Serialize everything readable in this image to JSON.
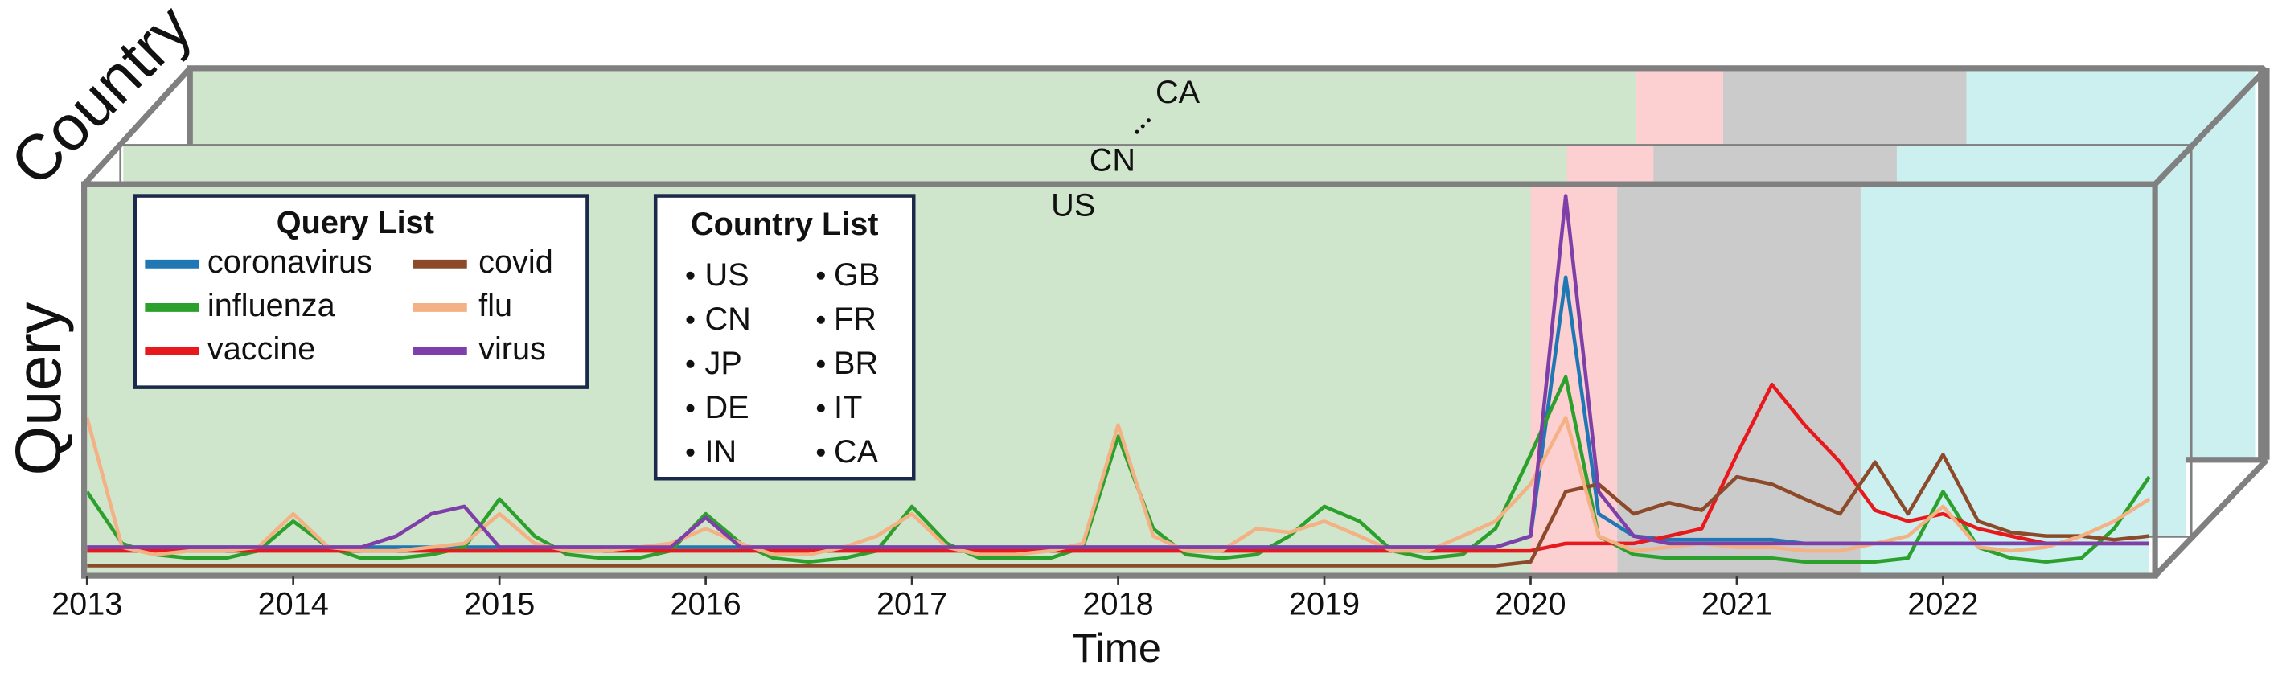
{
  "chart_data": {
    "type": "line",
    "x_label": "Time",
    "y_label": "Query",
    "z_label": "Country",
    "x": [
      2013,
      2013.17,
      2013.33,
      2013.5,
      2013.67,
      2013.83,
      2014,
      2014.17,
      2014.33,
      2014.5,
      2014.67,
      2014.83,
      2015,
      2015.17,
      2015.33,
      2015.5,
      2015.67,
      2015.83,
      2016,
      2016.17,
      2016.33,
      2016.5,
      2016.67,
      2016.83,
      2017,
      2017.17,
      2017.33,
      2017.5,
      2017.67,
      2017.83,
      2018,
      2018.17,
      2018.33,
      2018.5,
      2018.67,
      2018.83,
      2019,
      2019.17,
      2019.33,
      2019.5,
      2019.67,
      2019.83,
      2020,
      2020.17,
      2020.33,
      2020.5,
      2020.67,
      2020.83,
      2021,
      2021.17,
      2021.33,
      2021.5,
      2021.67,
      2021.83,
      2022,
      2022.17,
      2022.33,
      2022.5,
      2022.67,
      2022.83,
      2023
    ],
    "xlim": [
      2013,
      2023
    ],
    "xticks": [
      2013,
      2014,
      2015,
      2016,
      2017,
      2018,
      2019,
      2020,
      2021,
      2022
    ],
    "ylim": [
      0,
      100
    ],
    "series": [
      {
        "name": "coronavirus",
        "color": "#1f77b4",
        "values": [
          5,
          5,
          5,
          5,
          5,
          5,
          5,
          5,
          5,
          5,
          5,
          5,
          5,
          5,
          5,
          5,
          5,
          5,
          5,
          5,
          5,
          5,
          5,
          5,
          5,
          5,
          5,
          5,
          5,
          5,
          5,
          5,
          5,
          5,
          5,
          5,
          5,
          5,
          5,
          5,
          5,
          5,
          8,
          78,
          14,
          8,
          7,
          7,
          7,
          7,
          6,
          6,
          6,
          6,
          6,
          6,
          6,
          6,
          6,
          6,
          6
        ]
      },
      {
        "name": "influenza",
        "color": "#2ca02c",
        "values": [
          20,
          6,
          3,
          2,
          2,
          4,
          12,
          5,
          2,
          2,
          3,
          5,
          18,
          8,
          3,
          2,
          2,
          4,
          14,
          6,
          2,
          1,
          2,
          4,
          16,
          6,
          2,
          2,
          2,
          5,
          35,
          10,
          3,
          2,
          3,
          8,
          16,
          12,
          4,
          2,
          3,
          10,
          30,
          51,
          8,
          3,
          2,
          2,
          2,
          2,
          1,
          1,
          1,
          2,
          20,
          5,
          2,
          1,
          2,
          10,
          24
        ]
      },
      {
        "name": "vaccine",
        "color": "#e8191c",
        "values": [
          4,
          4,
          4,
          4,
          4,
          4,
          4,
          4,
          4,
          4,
          4,
          4,
          4,
          4,
          4,
          4,
          4,
          4,
          4,
          4,
          4,
          4,
          4,
          4,
          4,
          4,
          4,
          4,
          4,
          4,
          4,
          4,
          4,
          4,
          4,
          4,
          4,
          4,
          4,
          4,
          4,
          4,
          4,
          6,
          6,
          6,
          8,
          10,
          30,
          49,
          38,
          28,
          15,
          12,
          14,
          10,
          8,
          6,
          6,
          6,
          6
        ]
      },
      {
        "name": "covid",
        "color": "#8c4a2a",
        "values": [
          0,
          0,
          0,
          0,
          0,
          0,
          0,
          0,
          0,
          0,
          0,
          0,
          0,
          0,
          0,
          0,
          0,
          0,
          0,
          0,
          0,
          0,
          0,
          0,
          0,
          0,
          0,
          0,
          0,
          0,
          0,
          0,
          0,
          0,
          0,
          0,
          0,
          0,
          0,
          0,
          0,
          0,
          1,
          20,
          22,
          14,
          17,
          15,
          24,
          22,
          18,
          14,
          28,
          14,
          30,
          12,
          9,
          8,
          8,
          7,
          8
        ]
      },
      {
        "name": "flu",
        "color": "#f4b183",
        "values": [
          40,
          5,
          3,
          4,
          4,
          5,
          14,
          5,
          4,
          4,
          5,
          6,
          14,
          6,
          4,
          4,
          5,
          6,
          10,
          6,
          3,
          3,
          5,
          8,
          14,
          5,
          3,
          3,
          4,
          6,
          38,
          8,
          4,
          4,
          10,
          9,
          12,
          8,
          4,
          4,
          8,
          12,
          22,
          40,
          8,
          4,
          5,
          6,
          5,
          5,
          4,
          4,
          6,
          8,
          16,
          5,
          4,
          5,
          8,
          12,
          18
        ]
      },
      {
        "name": "virus",
        "color": "#7e3fa8",
        "values": [
          5,
          5,
          5,
          5,
          5,
          5,
          5,
          5,
          5,
          8,
          14,
          16,
          5,
          5,
          5,
          5,
          5,
          5,
          13,
          5,
          5,
          5,
          5,
          5,
          5,
          5,
          5,
          5,
          5,
          5,
          5,
          5,
          5,
          5,
          5,
          5,
          5,
          5,
          5,
          5,
          5,
          5,
          8,
          100,
          20,
          8,
          6,
          6,
          6,
          6,
          6,
          6,
          6,
          6,
          6,
          6,
          6,
          6,
          6,
          6,
          6
        ]
      }
    ],
    "legend_title": "Query List",
    "regions": [
      {
        "start": 2013,
        "end": 2020,
        "color": "#cfe5cc"
      },
      {
        "start": 2020,
        "end": 2020.42,
        "color": "#fccfd0"
      },
      {
        "start": 2020.42,
        "end": 2021.6,
        "color": "#cbcbcb"
      },
      {
        "start": 2021.6,
        "end": 2023,
        "color": "#ccf0ef"
      }
    ],
    "country_list_title": "Country List",
    "countries": [
      "US",
      "CN",
      "JP",
      "DE",
      "IN",
      "GB",
      "FR",
      "BR",
      "IT",
      "CA"
    ],
    "panel_labels": [
      "US",
      "CN",
      "CA"
    ]
  }
}
